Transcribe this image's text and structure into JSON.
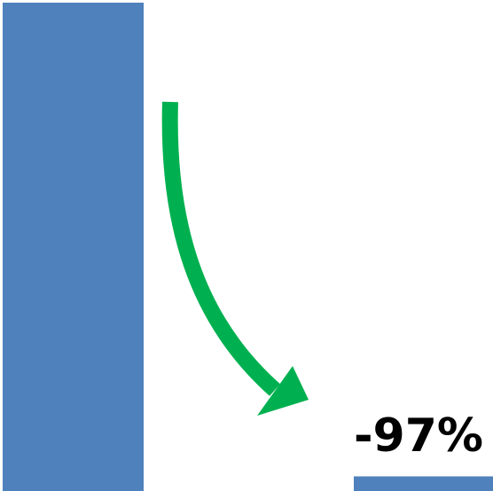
{
  "chart_data": {
    "type": "bar",
    "categories": [
      "",
      ""
    ],
    "values": [
      100,
      3
    ],
    "ylim": [
      0,
      100
    ],
    "grid": false,
    "annotations": [
      {
        "text": "-97%",
        "target_index": 1
      }
    ],
    "arrow": {
      "from_index": 0,
      "to_index": 1,
      "direction": "down"
    }
  },
  "colors": {
    "bar": "#4F81BD",
    "arrow": "#00B050",
    "label": "#000000"
  }
}
